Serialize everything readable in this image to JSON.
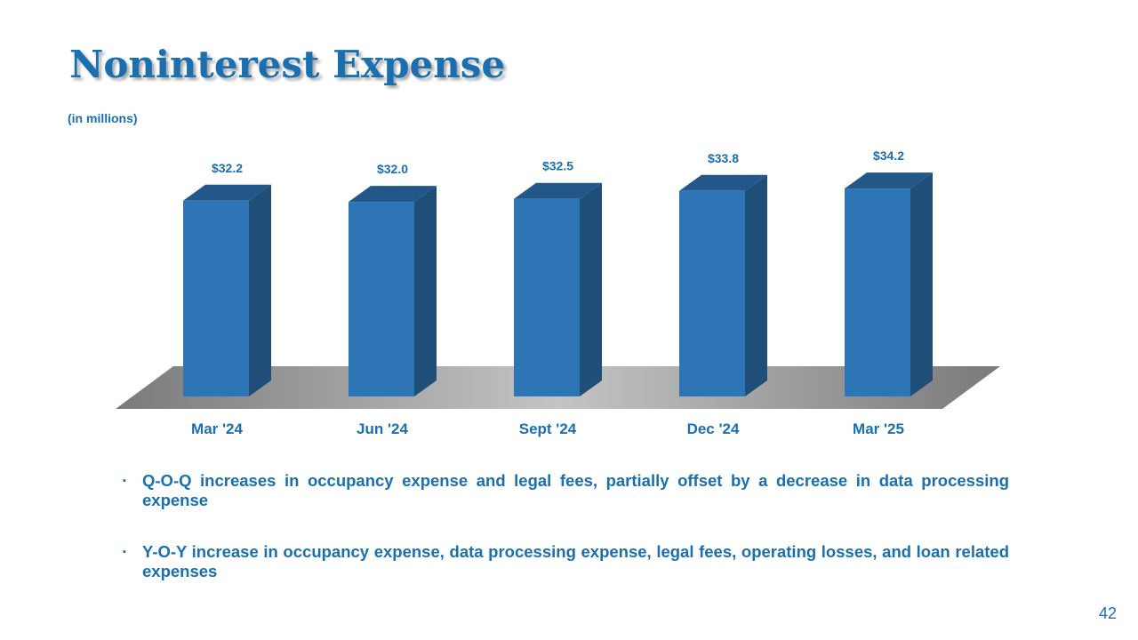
{
  "title": "Noninterest Expense",
  "subtitle": "(in millions)",
  "chart_data": {
    "type": "bar",
    "title": "Noninterest Expense",
    "ylabel": "(in millions)",
    "categories": [
      "Mar '24",
      "Jun '24",
      "Sept '24",
      "Dec '24",
      "Mar '25"
    ],
    "values": [
      32.2,
      32.0,
      32.5,
      33.8,
      34.2
    ],
    "labels": [
      "$32.2",
      "$32.0",
      "$32.5",
      "$33.8",
      "$34.2"
    ],
    "ylim": [
      0,
      35
    ],
    "grid": false,
    "colors": {
      "front": "#2e75b6",
      "side": "#1f4e79",
      "top": "#23578a"
    }
  },
  "bullets": [
    "Q-O-Q increases in occupancy expense and legal fees, partially offset by a decrease in data processing expense",
    "Y-O-Y increase in occupancy expense, data processing expense, legal fees, operating losses, and loan related expenses"
  ],
  "bullet_marker": "▪",
  "page_number": "42"
}
